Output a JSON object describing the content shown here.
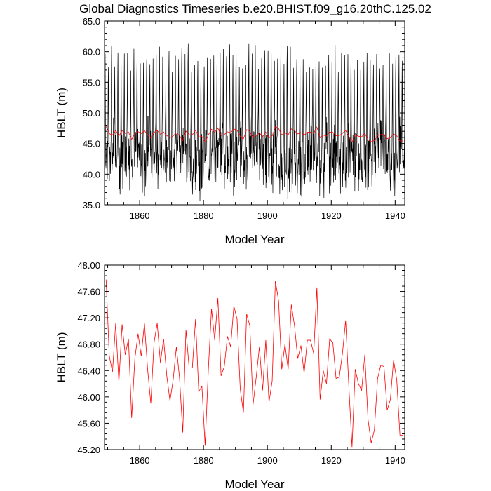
{
  "title": "Global Diagnostics Timeseries b.e20.BHIST.f09_g16.20thC.125.02",
  "colors": {
    "monthly": "#000000",
    "annual": "#ff0000",
    "frame": "#000000",
    "background": "#ffffff"
  },
  "chart_data": [
    {
      "type": "line",
      "xlabel": "Model Year",
      "ylabel": "HBLT (m)",
      "xlim": [
        1849,
        1943
      ],
      "ylim": [
        35.0,
        65.0
      ],
      "xticks": [
        1860,
        1880,
        1900,
        1920,
        1940
      ],
      "xtick_labels": [
        "1860",
        "1880",
        "1900",
        "1920",
        "1940"
      ],
      "yticks": [
        35,
        40,
        45,
        50,
        55,
        60,
        65
      ],
      "ytick_labels": [
        "35.0",
        "40.0",
        "45.0",
        "50.0",
        "55.0",
        "60.0",
        "65.0"
      ],
      "grid": false,
      "series_monthly": {
        "frequency": "monthly",
        "start_year": 1849,
        "end_year": 1943,
        "annual_peak_range": [
          56.5,
          61.3
        ],
        "annual_trough_range": [
          35.5,
          40.0
        ],
        "color": "#000000"
      },
      "series_annual_ref": "annual_mean"
    },
    {
      "type": "line",
      "xlabel": "Model Year",
      "ylabel": "HBLT (m)",
      "xlim": [
        1849,
        1943
      ],
      "ylim": [
        45.2,
        48.0
      ],
      "xticks": [
        1860,
        1880,
        1900,
        1920,
        1940
      ],
      "xtick_labels": [
        "1860",
        "1880",
        "1900",
        "1920",
        "1940"
      ],
      "yticks": [
        45.2,
        45.6,
        46.0,
        46.4,
        46.8,
        47.2,
        47.6,
        48.0
      ],
      "ytick_labels": [
        "45.20",
        "45.60",
        "46.00",
        "46.40",
        "46.80",
        "47.20",
        "47.60",
        "48.00"
      ],
      "grid": false,
      "series_annual_ref": "annual_mean"
    }
  ],
  "annual_mean": {
    "x": [
      1849.5,
      1850.5,
      1851.5,
      1852.5,
      1853.5,
      1854.5,
      1855.5,
      1856.5,
      1857.5,
      1858.5,
      1859.5,
      1860.5,
      1861.5,
      1862.5,
      1863.5,
      1864.5,
      1865.5,
      1866.5,
      1867.5,
      1868.5,
      1869.5,
      1870.5,
      1871.5,
      1872.5,
      1873.5,
      1874.5,
      1875.5,
      1876.5,
      1877.5,
      1878.5,
      1879.5,
      1880.5,
      1881.5,
      1882.5,
      1883.5,
      1884.5,
      1885.5,
      1886.5,
      1887.5,
      1888.5,
      1889.5,
      1890.5,
      1891.5,
      1892.5,
      1893.5,
      1894.5,
      1895.5,
      1896.5,
      1897.5,
      1898.5,
      1899.5,
      1900.5,
      1901.5,
      1902.5,
      1903.5,
      1904.5,
      1905.5,
      1906.5,
      1907.5,
      1908.5,
      1909.5,
      1910.5,
      1911.5,
      1912.5,
      1913.5,
      1914.5,
      1915.5,
      1916.5,
      1917.5,
      1918.5,
      1919.5,
      1920.5,
      1921.5,
      1922.5,
      1923.5,
      1924.5,
      1925.5,
      1926.5,
      1927.5,
      1928.5,
      1929.5,
      1930.5,
      1931.5,
      1932.5,
      1933.5,
      1934.5,
      1935.5,
      1936.5,
      1937.5,
      1938.5,
      1939.5,
      1940.5,
      1941.5,
      1942.5
    ],
    "y": [
      47.78,
      46.62,
      46.38,
      47.12,
      46.22,
      47.1,
      46.64,
      46.88,
      45.68,
      46.58,
      46.96,
      46.62,
      47.12,
      46.42,
      45.9,
      46.82,
      47.12,
      46.52,
      46.88,
      46.32,
      45.94,
      46.26,
      46.76,
      46.28,
      45.46,
      47.02,
      46.44,
      46.44,
      47.18,
      46.08,
      46.16,
      45.26,
      46.4,
      47.34,
      46.86,
      47.5,
      46.32,
      46.46,
      46.92,
      46.76,
      47.38,
      47.18,
      46.12,
      45.76,
      47.26,
      47.08,
      45.88,
      46.3,
      46.76,
      46.1,
      46.86,
      45.92,
      46.24,
      47.76,
      47.46,
      46.42,
      46.8,
      46.42,
      47.4,
      47.08,
      46.58,
      46.78,
      46.36,
      46.86,
      46.86,
      46.66,
      47.66,
      45.96,
      46.4,
      46.2,
      46.88,
      46.82,
      46.28,
      46.3,
      46.66,
      47.16,
      46.16,
      45.24,
      46.42,
      46.2,
      46.1,
      46.64,
      45.66,
      45.3,
      45.5,
      46.28,
      46.48,
      46.46,
      45.8,
      45.96,
      46.56,
      46.26,
      45.42,
      45.42
    ]
  }
}
